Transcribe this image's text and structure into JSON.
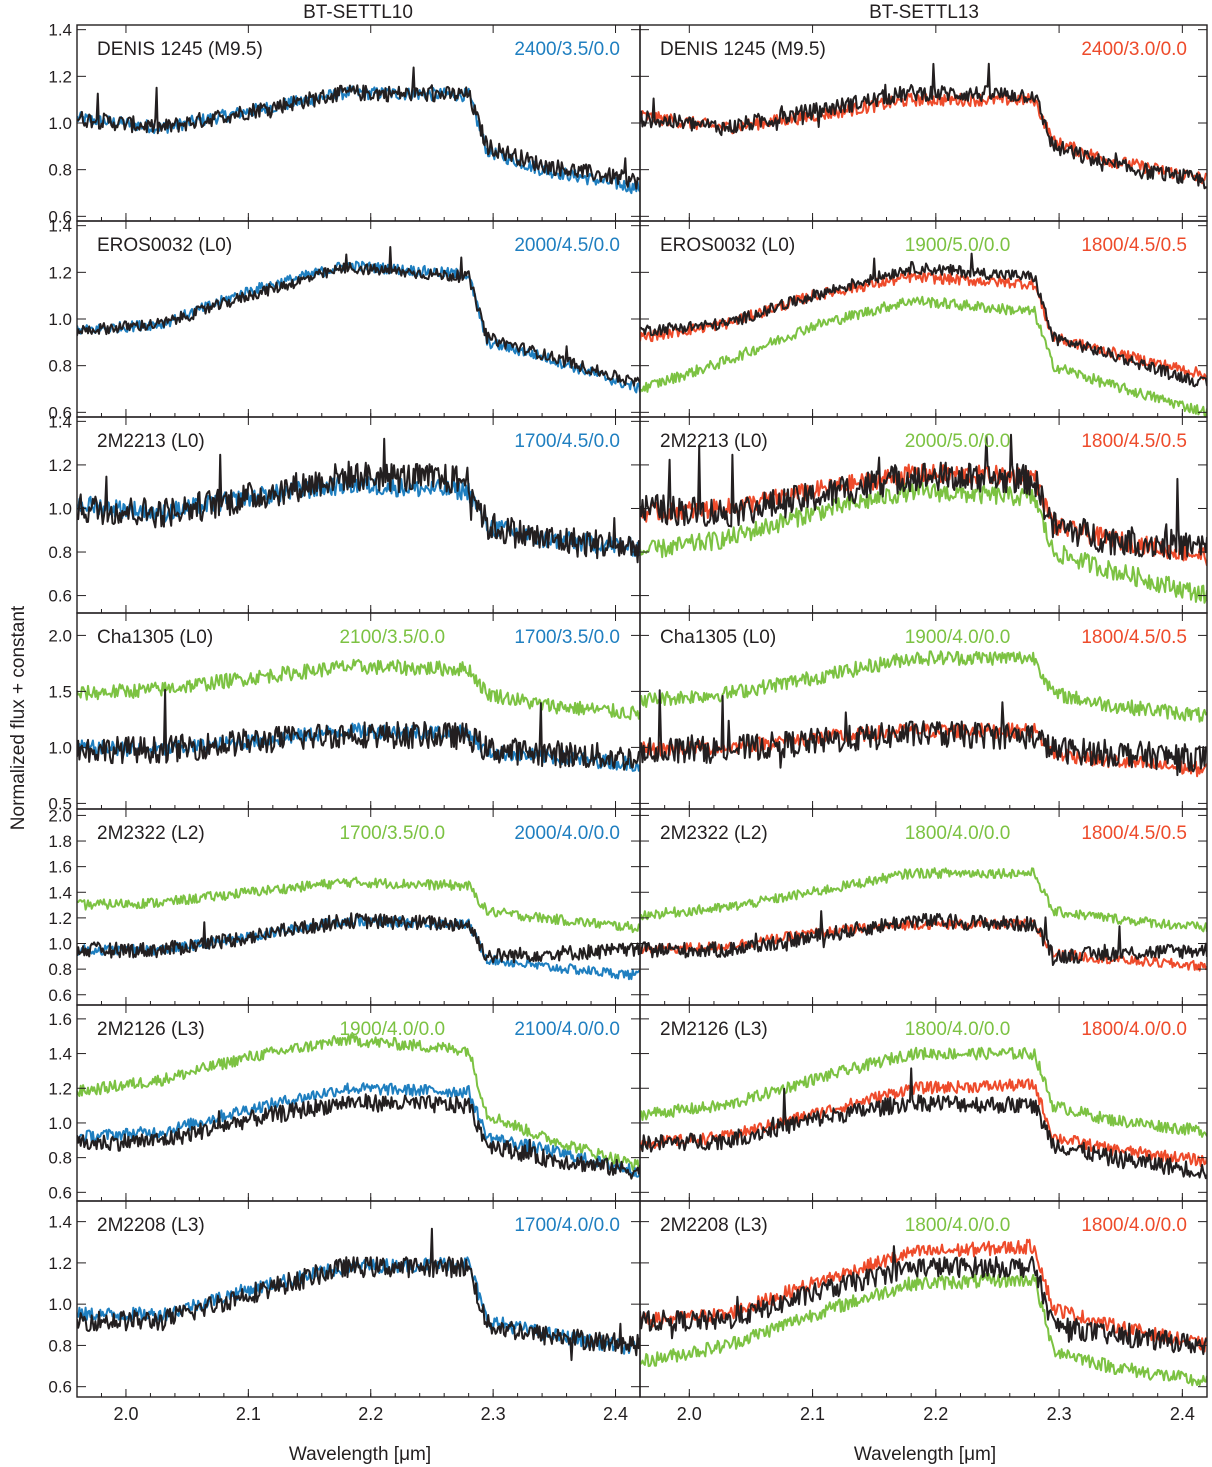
{
  "figure": {
    "column_titles": [
      "BT-SETTL10",
      "BT-SETTL13"
    ],
    "ylabel": "Normalized flux + constant",
    "xlabel_prefix": "Wavelength [",
    "xlabel_unit": "μm",
    "xlabel_suffix": "]"
  },
  "colors": {
    "observed": "#231f20",
    "blue": "#1f7fc0",
    "green": "#7cc242",
    "red": "#ee4b2b"
  },
  "chart_data": {
    "type": "line",
    "x_range": [
      1.96,
      2.42
    ],
    "x_ticks": [
      "2.0",
      "2.1",
      "2.2",
      "2.3",
      "2.4"
    ],
    "x_tick_values": [
      2.0,
      2.1,
      2.2,
      2.3,
      2.4
    ],
    "rows": [
      {
        "object": "DENIS 1245 (M9.5)",
        "ylim": [
          0.58,
          1.42
        ],
        "y_ticks": [
          0.6,
          0.8,
          1.0,
          1.2,
          1.4
        ],
        "y_tick_labels": [
          "0.6",
          "0.8",
          "1.0",
          "1.2",
          "1.4"
        ],
        "observed_shape": [
          1.02,
          0.98,
          1.05,
          1.13,
          1.12,
          0.9,
          0.82,
          0.75
        ],
        "noise": 0.035,
        "left": [
          {
            "label": "2400/3.5/0.0",
            "color": "blue",
            "shape": [
              1.02,
              0.98,
              1.05,
              1.13,
              1.12,
              0.88,
              0.8,
              0.72
            ]
          }
        ],
        "right": [
          {
            "label": "2400/3.0/0.0",
            "color": "red",
            "shape": [
              1.03,
              0.98,
              1.03,
              1.1,
              1.1,
              0.92,
              0.84,
              0.76
            ]
          }
        ]
      },
      {
        "object": "EROS0032 (L0)",
        "ylim": [
          0.58,
          1.42
        ],
        "y_ticks": [
          0.6,
          0.8,
          1.0,
          1.2,
          1.4
        ],
        "y_tick_labels": [
          "0.6",
          "0.8",
          "1.0",
          "1.2",
          "1.4"
        ],
        "observed_shape": [
          0.95,
          0.98,
          1.1,
          1.22,
          1.18,
          0.92,
          0.85,
          0.72
        ],
        "noise": 0.025,
        "left": [
          {
            "label": "2000/4.5/0.0",
            "color": "blue",
            "shape": [
              0.95,
              0.98,
              1.12,
              1.23,
              1.19,
              0.9,
              0.84,
              0.7
            ]
          }
        ],
        "right": [
          {
            "label": "1900/5.0/0.0",
            "color": "green",
            "shape": [
              0.7,
              0.82,
              0.97,
              1.08,
              1.03,
              0.8,
              0.72,
              0.6
            ]
          },
          {
            "label": "1800/4.5/0.5",
            "color": "red",
            "shape": [
              0.92,
              0.98,
              1.1,
              1.18,
              1.15,
              0.92,
              0.86,
              0.76
            ]
          }
        ]
      },
      {
        "object": "2M2213 (L0)",
        "ylim": [
          0.52,
          1.42
        ],
        "y_ticks": [
          0.6,
          0.8,
          1.0,
          1.2,
          1.4
        ],
        "y_tick_labels": [
          "0.6",
          "0.8",
          "1.0",
          "1.2",
          "1.4"
        ],
        "observed_shape": [
          1.0,
          0.98,
          1.05,
          1.15,
          1.13,
          0.92,
          0.86,
          0.82
        ],
        "noise": 0.07,
        "left": [
          {
            "label": "1700/4.5/0.0",
            "color": "blue",
            "shape": [
              1.02,
              0.98,
              1.05,
              1.11,
              1.08,
              0.92,
              0.86,
              0.82
            ]
          }
        ],
        "right": [
          {
            "label": "2000/5.0/0.0",
            "color": "green",
            "shape": [
              0.8,
              0.86,
              0.98,
              1.08,
              1.05,
              0.8,
              0.72,
              0.6
            ]
          },
          {
            "label": "1800/4.5/0.5",
            "color": "red",
            "shape": [
              0.98,
              1.0,
              1.08,
              1.16,
              1.15,
              0.92,
              0.86,
              0.78
            ]
          }
        ]
      },
      {
        "object": "Cha1305 (L0)",
        "ylim": [
          0.45,
          2.2
        ],
        "y_ticks": [
          0.5,
          1.0,
          1.5,
          2.0
        ],
        "y_tick_labels": [
          "0.5",
          "1.0",
          "1.5",
          "2.0"
        ],
        "observed_shape": [
          0.98,
          0.98,
          1.05,
          1.12,
          1.1,
          0.98,
          0.95,
          0.9
        ],
        "noise": 0.12,
        "left": [
          {
            "label": "2100/3.5/0.0",
            "color": "green",
            "shape": [
              1.48,
              1.52,
              1.62,
              1.72,
              1.7,
              1.48,
              1.38,
              1.3
            ]
          },
          {
            "label": "1700/3.5/0.0",
            "color": "blue",
            "shape": [
              1.0,
              0.98,
              1.05,
              1.15,
              1.13,
              0.96,
              0.92,
              0.85
            ]
          }
        ],
        "right": [
          {
            "label": "1900/4.0/0.0",
            "color": "green",
            "shape": [
              1.42,
              1.48,
              1.62,
              1.8,
              1.8,
              1.48,
              1.38,
              1.28
            ]
          },
          {
            "label": "1800/4.5/0.5",
            "color": "red",
            "shape": [
              0.98,
              1.0,
              1.08,
              1.15,
              1.15,
              0.95,
              0.88,
              0.8
            ]
          }
        ]
      },
      {
        "object": "2M2322 (L2)",
        "ylim": [
          0.52,
          2.05
        ],
        "y_ticks": [
          0.6,
          0.8,
          1.0,
          1.2,
          1.4,
          1.6,
          1.8,
          2.0
        ],
        "y_tick_labels": [
          "0.6",
          "0.8",
          "1.0",
          "1.2",
          "1.4",
          "1.6",
          "1.8",
          "2.0"
        ],
        "observed_shape": [
          0.95,
          0.95,
          1.05,
          1.18,
          1.15,
          0.9,
          0.92,
          0.95
        ],
        "noise": 0.06,
        "left": [
          {
            "label": "1700/3.5/0.0",
            "color": "green",
            "shape": [
              1.3,
              1.32,
              1.4,
              1.48,
              1.45,
              1.25,
              1.2,
              1.12
            ]
          },
          {
            "label": "2000/4.0/0.0",
            "color": "blue",
            "shape": [
              0.95,
              0.95,
              1.05,
              1.18,
              1.15,
              0.88,
              0.82,
              0.75
            ]
          }
        ],
        "right": [
          {
            "label": "1800/4.0/0.0",
            "color": "green",
            "shape": [
              1.22,
              1.28,
              1.4,
              1.55,
              1.55,
              1.25,
              1.2,
              1.12
            ]
          },
          {
            "label": "1800/4.5/0.5",
            "color": "red",
            "shape": [
              0.95,
              0.98,
              1.08,
              1.15,
              1.15,
              0.92,
              0.88,
              0.82
            ]
          }
        ]
      },
      {
        "object": "2M2126 (L3)",
        "ylim": [
          0.55,
          1.68
        ],
        "y_ticks": [
          0.6,
          0.8,
          1.0,
          1.2,
          1.4,
          1.6
        ],
        "y_tick_labels": [
          "0.6",
          "0.8",
          "1.0",
          "1.2",
          "1.4",
          "1.6"
        ],
        "observed_shape": [
          0.88,
          0.9,
          1.02,
          1.12,
          1.1,
          0.88,
          0.8,
          0.72
        ],
        "noise": 0.05,
        "left": [
          {
            "label": "1900/4.0/0.0",
            "color": "green",
            "shape": [
              1.18,
              1.25,
              1.38,
              1.48,
              1.42,
              1.05,
              0.92,
              0.75
            ]
          },
          {
            "label": "2100/4.0/0.0",
            "color": "blue",
            "shape": [
              0.92,
              0.95,
              1.08,
              1.2,
              1.18,
              0.92,
              0.85,
              0.72
            ]
          }
        ],
        "right": [
          {
            "label": "1800/4.0/0.0",
            "color": "green",
            "shape": [
              1.05,
              1.1,
              1.25,
              1.4,
              1.4,
              1.1,
              1.02,
              0.95
            ]
          },
          {
            "label": "1800/4.0/0.0",
            "color": "red",
            "shape": [
              0.88,
              0.92,
              1.05,
              1.2,
              1.22,
              0.92,
              0.85,
              0.78
            ]
          }
        ]
      },
      {
        "object": "2M2208 (L3)",
        "ylim": [
          0.55,
          1.5
        ],
        "y_ticks": [
          0.6,
          0.8,
          1.0,
          1.2,
          1.4
        ],
        "y_tick_labels": [
          "0.6",
          "0.8",
          "1.0",
          "1.2",
          "1.4"
        ],
        "observed_shape": [
          0.92,
          0.92,
          1.05,
          1.18,
          1.18,
          0.9,
          0.85,
          0.8
        ],
        "noise": 0.05,
        "left": [
          {
            "label": "1700/4.0/0.0",
            "color": "blue",
            "shape": [
              0.95,
              0.95,
              1.07,
              1.18,
              1.2,
              0.92,
              0.86,
              0.78
            ]
          }
        ],
        "right": [
          {
            "label": "1800/4.0/0.0",
            "color": "green",
            "shape": [
              0.72,
              0.8,
              0.95,
              1.1,
              1.12,
              0.78,
              0.7,
              0.62
            ]
          },
          {
            "label": "1800/4.0/0.0",
            "color": "red",
            "shape": [
              0.92,
              0.95,
              1.1,
              1.25,
              1.28,
              0.98,
              0.9,
              0.8
            ]
          }
        ]
      }
    ]
  }
}
